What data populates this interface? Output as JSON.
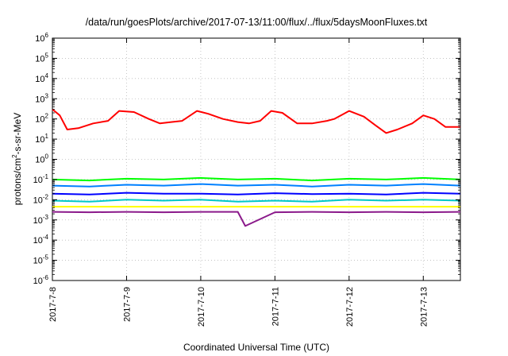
{
  "chart_data": {
    "type": "line",
    "title": "/data/run/goesPlots/archive/2017-07-13/11:00/flux/../flux/5daysMoonFluxes.txt",
    "xlabel": "Coordinated Universal Time (UTC)",
    "ylabel": "protons/cm2-s-sr-MeV",
    "ylabel_parts": {
      "pre": "protons/cm",
      "sup": "2",
      "post": "-s-sr-MeV"
    },
    "x_ticks": [
      "2017-7-8",
      "2017-7-9",
      "2017-7-10",
      "2017-7-11",
      "2017-7-12",
      "2017-7-13"
    ],
    "xlim_days": [
      0,
      5.5
    ],
    "y_scale": "log",
    "ylim": [
      1e-06,
      1000000.0
    ],
    "y_ticks": [
      {
        "base": "10",
        "exp": "-6"
      },
      {
        "base": "10",
        "exp": "-5"
      },
      {
        "base": "10",
        "exp": "-4"
      },
      {
        "base": "10",
        "exp": "-3"
      },
      {
        "base": "10",
        "exp": "-2"
      },
      {
        "base": "10",
        "exp": "-1"
      },
      {
        "base": "10",
        "exp": "0"
      },
      {
        "base": "10",
        "exp": "1"
      },
      {
        "base": "10",
        "exp": "2"
      },
      {
        "base": "10",
        "exp": "3"
      },
      {
        "base": "10",
        "exp": "4"
      },
      {
        "base": "10",
        "exp": "5"
      },
      {
        "base": "10",
        "exp": "6"
      }
    ],
    "grid": true,
    "legend": "none",
    "series": [
      {
        "color": "#ff0000",
        "x": [
          0,
          0.1,
          0.2,
          0.35,
          0.55,
          0.75,
          0.9,
          1.1,
          1.3,
          1.45,
          1.6,
          1.75,
          1.95,
          2.1,
          2.3,
          2.5,
          2.65,
          2.8,
          2.95,
          3.1,
          3.3,
          3.5,
          3.7,
          3.8,
          4.0,
          4.2,
          4.35,
          4.5,
          4.65,
          4.85,
          5.0,
          5.15,
          5.3,
          5.45,
          5.5
        ],
        "y": [
          300,
          150,
          30,
          35,
          60,
          80,
          250,
          220,
          100,
          60,
          70,
          80,
          250,
          180,
          100,
          70,
          60,
          80,
          250,
          200,
          60,
          60,
          80,
          100,
          250,
          130,
          50,
          20,
          30,
          60,
          150,
          100,
          40,
          40,
          40
        ]
      },
      {
        "color": "#00ff00",
        "x": [
          0,
          0.5,
          1,
          1.5,
          2,
          2.5,
          3,
          3.5,
          4,
          4.5,
          5,
          5.5
        ],
        "y": [
          0.1,
          0.09,
          0.11,
          0.1,
          0.12,
          0.1,
          0.11,
          0.09,
          0.11,
          0.1,
          0.12,
          0.1
        ]
      },
      {
        "color": "#0080ff",
        "x": [
          0,
          0.5,
          1,
          1.5,
          2,
          2.5,
          3,
          3.5,
          4,
          4.5,
          5,
          5.5
        ],
        "y": [
          0.05,
          0.045,
          0.055,
          0.05,
          0.06,
          0.05,
          0.055,
          0.045,
          0.055,
          0.05,
          0.06,
          0.05
        ]
      },
      {
        "color": "#00c8c8",
        "x": [
          0,
          0.5,
          1,
          1.5,
          2,
          2.5,
          3,
          3.5,
          4,
          4.5,
          5,
          5.5
        ],
        "y": [
          0.009,
          0.008,
          0.01,
          0.009,
          0.01,
          0.008,
          0.009,
          0.008,
          0.01,
          0.009,
          0.01,
          0.009
        ]
      },
      {
        "color": "#0000ff",
        "x": [
          0,
          0.5,
          1,
          1.5,
          2,
          2.5,
          3,
          3.5,
          4,
          4.5,
          5,
          5.5
        ],
        "y": [
          0.02,
          0.018,
          0.022,
          0.02,
          0.02,
          0.018,
          0.021,
          0.019,
          0.02,
          0.018,
          0.022,
          0.02
        ]
      },
      {
        "color": "#ffff00",
        "x": [
          0,
          0.5,
          1,
          1.5,
          2,
          2.5,
          3,
          3.5,
          4,
          4.5,
          5,
          5.5
        ],
        "y": [
          0.0045,
          0.0045,
          0.0045,
          0.0045,
          0.0045,
          0.0045,
          0.0045,
          0.0045,
          0.0045,
          0.0045,
          0.0045,
          0.0045
        ]
      },
      {
        "color": "#8b1a8b",
        "x": [
          0,
          0.5,
          1,
          1.5,
          2,
          2.5,
          2.6,
          3,
          3.5,
          4,
          4.5,
          5,
          5.5
        ],
        "y": [
          0.0025,
          0.0024,
          0.0025,
          0.0024,
          0.0025,
          0.0025,
          0.0005,
          0.0024,
          0.0025,
          0.0024,
          0.0025,
          0.0024,
          0.0025
        ]
      }
    ]
  }
}
